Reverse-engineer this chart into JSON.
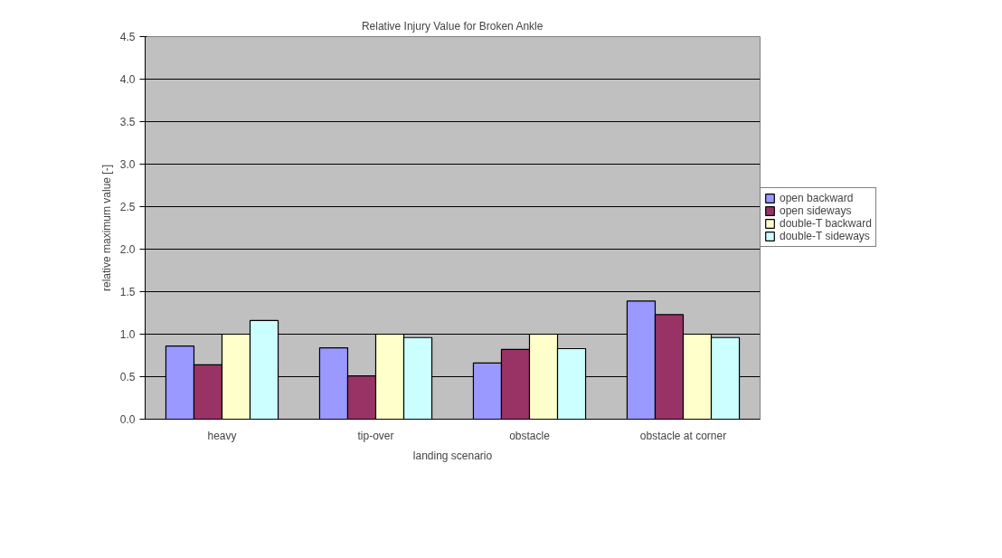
{
  "chart_data": {
    "type": "bar",
    "title": "Relative Injury Value for Broken Ankle",
    "xlabel": "landing scenario",
    "ylabel": "relative maximum value [-]",
    "categories": [
      "heavy",
      "tip-over",
      "obstacle",
      "obstacle at corner"
    ],
    "series": [
      {
        "name": "open backward",
        "color": "#9999ff",
        "values": [
          0.86,
          0.84,
          0.66,
          1.39
        ]
      },
      {
        "name": "open sideways",
        "color": "#993366",
        "values": [
          0.64,
          0.51,
          0.82,
          1.23
        ]
      },
      {
        "name": "double-T backward",
        "color": "#ffffcc",
        "values": [
          1.0,
          1.0,
          1.0,
          1.0
        ]
      },
      {
        "name": "double-T sideways",
        "color": "#ccffff",
        "values": [
          1.16,
          0.96,
          0.83,
          0.96
        ]
      }
    ],
    "ylim": [
      0,
      4.5
    ],
    "yticks": [
      {
        "value": 0,
        "label": "0.0"
      },
      {
        "value": 0.5,
        "label": "0.5"
      },
      {
        "value": 1,
        "label": "1.0"
      },
      {
        "value": 1.5,
        "label": "1.5"
      },
      {
        "value": 2,
        "label": "2.0"
      },
      {
        "value": 2.5,
        "label": "2.5"
      },
      {
        "value": 3,
        "label": "3.0"
      },
      {
        "value": 3.5,
        "label": "3.5"
      },
      {
        "value": 4,
        "label": "4.0"
      },
      {
        "value": 4.5,
        "label": "4.5"
      }
    ],
    "grid": "y",
    "legend": "right"
  }
}
